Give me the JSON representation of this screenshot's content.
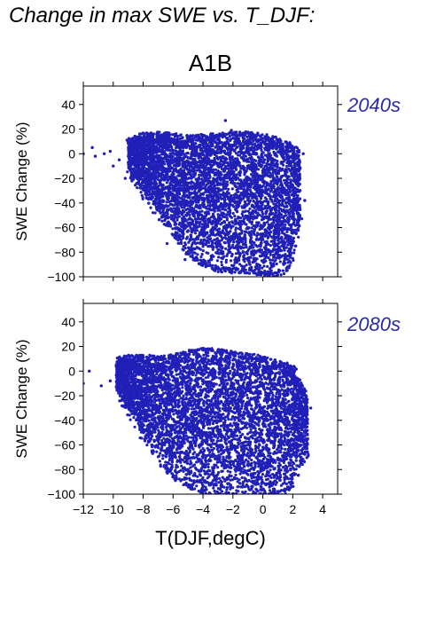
{
  "figure": {
    "title": "Change in max SWE vs. T_DJF:",
    "scenario": "A1B",
    "xlabel": "T(DJF,degC)",
    "ylabel": "SWE Change (%)"
  },
  "colors": {
    "points": "#2020b8",
    "period_label": "#2a2aa8"
  },
  "chart_data": [
    {
      "type": "scatter",
      "period_label": "2040s",
      "xlabel": "",
      "ylabel": "SWE Change (%)",
      "xlim": [
        -12,
        5
      ],
      "ylim": [
        -100,
        55
      ],
      "xticks": [
        -12,
        -10,
        -8,
        -6,
        -4,
        -2,
        0,
        2,
        4
      ],
      "yticks": [
        -100,
        -80,
        -60,
        -40,
        -20,
        0,
        20,
        40
      ],
      "x_ticklabels_shown": false,
      "envelope": {
        "x": [
          -9.0,
          -8.0,
          -7.0,
          -6.0,
          -5.0,
          -4.0,
          -3.0,
          -2.0,
          -1.0,
          0.0,
          1.0,
          1.8,
          2.5
        ],
        "y_low": [
          -12,
          -30,
          -48,
          -62,
          -78,
          -88,
          -92,
          -93,
          -94,
          -95,
          -96,
          -90,
          -50
        ],
        "y_high": [
          9,
          14,
          15,
          14,
          12,
          13,
          14,
          15,
          15,
          13,
          10,
          5,
          0
        ]
      },
      "outliers": [
        {
          "x": -12.0,
          "y": 0
        },
        {
          "x": -11.4,
          "y": 5
        },
        {
          "x": -11.2,
          "y": -2
        },
        {
          "x": -10.6,
          "y": 0
        },
        {
          "x": -10.2,
          "y": 2
        },
        {
          "x": -10.0,
          "y": -10
        },
        {
          "x": -9.6,
          "y": -5
        },
        {
          "x": -9.2,
          "y": -20
        },
        {
          "x": -2.5,
          "y": 27
        },
        {
          "x": -2.1,
          "y": 19
        },
        {
          "x": 2.7,
          "y": 0
        },
        {
          "x": 2.4,
          "y": -20
        },
        {
          "x": 2.8,
          "y": -38
        },
        {
          "x": 2.2,
          "y": -75
        },
        {
          "x": -6.4,
          "y": -73
        },
        {
          "x": -5.2,
          "y": -86
        }
      ],
      "n_points": 5200,
      "seed": 11
    },
    {
      "type": "scatter",
      "period_label": "2080s",
      "xlabel": "T(DJF,degC)",
      "ylabel": "SWE Change (%)",
      "xlim": [
        -12,
        5
      ],
      "ylim": [
        -100,
        55
      ],
      "xticks": [
        -12,
        -10,
        -8,
        -6,
        -4,
        -2,
        0,
        2,
        4
      ],
      "yticks": [
        -100,
        -80,
        -60,
        -40,
        -20,
        0,
        20,
        40
      ],
      "x_ticklabels_shown": true,
      "envelope": {
        "x": [
          -9.8,
          -8.8,
          -7.8,
          -6.8,
          -5.8,
          -4.8,
          -3.8,
          -2.8,
          -1.8,
          -0.8,
          0.2,
          1.2,
          2.0,
          3.0
        ],
        "y_low": [
          -15,
          -35,
          -55,
          -72,
          -85,
          -92,
          -96,
          -98,
          -99,
          -99,
          -99,
          -98,
          -90,
          -62
        ],
        "y_high": [
          8,
          10,
          10,
          9,
          11,
          14,
          16,
          15,
          13,
          11,
          9,
          6,
          2,
          -22
        ]
      },
      "outliers": [
        {
          "x": -12.0,
          "y": -10
        },
        {
          "x": -11.6,
          "y": 0
        },
        {
          "x": -10.8,
          "y": -12
        },
        {
          "x": -10.2,
          "y": -8
        },
        {
          "x": -9.8,
          "y": 4
        },
        {
          "x": -9.4,
          "y": -5
        },
        {
          "x": -3.6,
          "y": 18
        },
        {
          "x": -2.8,
          "y": 17
        },
        {
          "x": 3.2,
          "y": -30
        },
        {
          "x": 2.6,
          "y": -15
        },
        {
          "x": 3.0,
          "y": -55
        },
        {
          "x": -7.4,
          "y": -60
        }
      ],
      "n_points": 5600,
      "seed": 23
    }
  ]
}
